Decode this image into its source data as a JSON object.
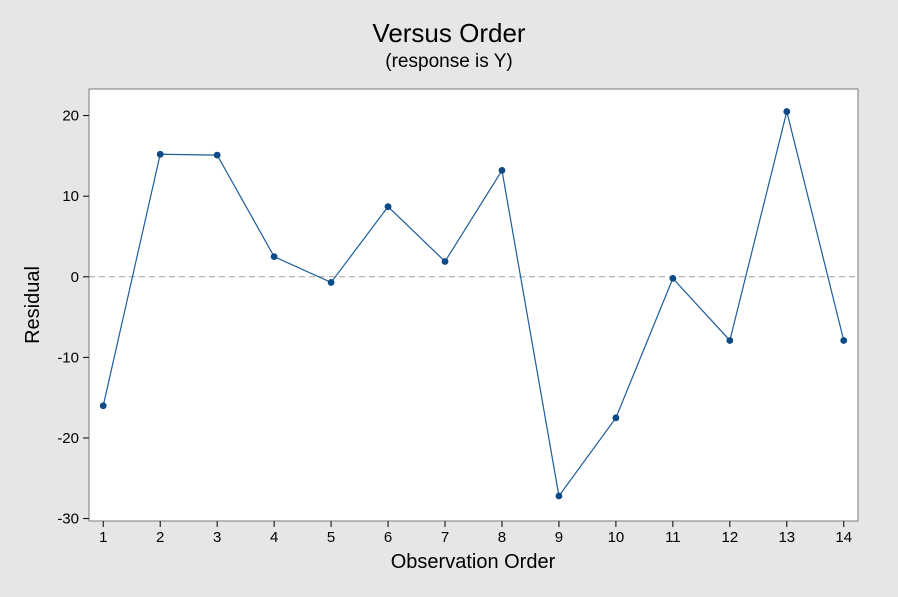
{
  "chart_data": {
    "type": "line",
    "title": "Versus Order",
    "subtitle": "(response is Y)",
    "xlabel": "Observation Order",
    "ylabel": "Residual",
    "x": [
      1,
      2,
      3,
      4,
      5,
      6,
      7,
      8,
      9,
      10,
      11,
      12,
      13,
      14
    ],
    "series": [
      {
        "values": [
          -16.0,
          15.2,
          15.1,
          2.5,
          -0.7,
          8.7,
          1.9,
          13.2,
          -27.2,
          -17.5,
          -0.2,
          -7.9,
          20.5,
          -7.9
        ]
      }
    ],
    "xticks": [
      "1",
      "2",
      "3",
      "4",
      "5",
      "6",
      "7",
      "8",
      "9",
      "10",
      "11",
      "12",
      "13",
      "14"
    ],
    "yticks": [
      "-30",
      "-20",
      "-10",
      "0",
      "10",
      "20"
    ],
    "xlim": [
      0.75,
      14.25
    ],
    "ylim": [
      -30.3,
      23.3
    ],
    "reference_line_y": 0,
    "grid": false,
    "colors": {
      "series": "#1f5c9a",
      "marker": "#0b4a86",
      "reference_line": "#a0a0a0",
      "page_background": "#e6e6e6",
      "plot_background": "#ffffff"
    }
  }
}
